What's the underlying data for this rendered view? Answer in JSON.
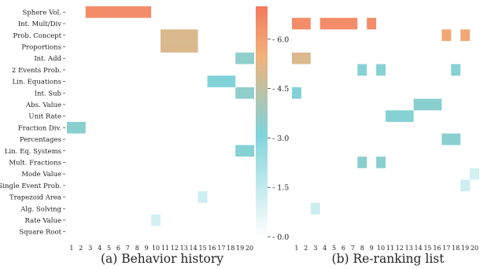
{
  "chart_data": [
    {
      "type": "heatmap",
      "title": "(a) Behavior history",
      "ylabels": [
        "Sphere Vol.",
        "Int. Mult/Div",
        "Prob. Concept",
        "Proportions",
        "Int. Add",
        "2 Events Prob.",
        "Lin. Equations",
        "Int. Sub",
        "Abs. Value",
        "Unit Rate",
        "Fraction Div.",
        "Percentages",
        "Lin. Eq. Systems",
        "Mult. Fractions",
        "Mode Value",
        "Single Event Prob.",
        "Trapezoid Area",
        "Alg. Solving",
        "Rate Value",
        "Square Root"
      ],
      "xlabels": [
        "1",
        "2",
        "3",
        "4",
        "5",
        "6",
        "7",
        "8",
        "9",
        "10",
        "11",
        "12",
        "13",
        "14",
        "15",
        "16",
        "17",
        "18",
        "19",
        "20"
      ],
      "cells": [
        {
          "row": "Sphere Vol.",
          "x": [
            3,
            9
          ],
          "value": 6.5
        },
        {
          "row": "Proportions",
          "x": [
            11,
            14
          ],
          "value": 5.0
        },
        {
          "row": "Prob. Concept",
          "x": [
            11,
            14
          ],
          "value": 5.0
        },
        {
          "row": "Int. Add",
          "x": [
            19,
            20
          ],
          "value": 3.5
        },
        {
          "row": "Lin. Equations",
          "x": [
            16,
            18
          ],
          "value": 3.2
        },
        {
          "row": "Int. Sub",
          "x": [
            19,
            20
          ],
          "value": 3.5
        },
        {
          "row": "Fraction Div.",
          "x": [
            1,
            2
          ],
          "value": 3.4
        },
        {
          "row": "Lin. Eq. Systems",
          "x": [
            19,
            20
          ],
          "value": 3.3
        },
        {
          "row": "Trapezoid Area",
          "x": [
            15,
            15
          ],
          "value": 1.2
        },
        {
          "row": "Rate Value",
          "x": [
            10,
            10
          ],
          "value": 1.1
        }
      ]
    },
    {
      "type": "heatmap",
      "title": "(b) Re-ranking list",
      "xlabels": [
        "1",
        "2",
        "3",
        "4",
        "5",
        "6",
        "7",
        "8",
        "9",
        "10",
        "11",
        "12",
        "13",
        "14",
        "15",
        "16",
        "17",
        "18",
        "19",
        "20"
      ],
      "cells": [
        {
          "row": "Int. Mult/Div",
          "x": [
            1,
            2
          ],
          "value": 6.5
        },
        {
          "row": "Int. Mult/Div",
          "x": [
            4,
            7
          ],
          "value": 6.5
        },
        {
          "row": "Int. Mult/Div",
          "x": [
            9,
            9
          ],
          "value": 6.5
        },
        {
          "row": "Prob. Concept",
          "x": [
            17,
            17
          ],
          "value": 5.8
        },
        {
          "row": "Prob. Concept",
          "x": [
            19,
            19
          ],
          "value": 5.8
        },
        {
          "row": "Int. Add",
          "x": [
            1,
            2
          ],
          "value": 5.0
        },
        {
          "row": "2 Events Prob.",
          "x": [
            8,
            8
          ],
          "value": 3.3
        },
        {
          "row": "2 Events Prob.",
          "x": [
            10,
            10
          ],
          "value": 3.3
        },
        {
          "row": "2 Events Prob.",
          "x": [
            18,
            18
          ],
          "value": 3.3
        },
        {
          "row": "Int. Sub",
          "x": [
            1,
            1
          ],
          "value": 3.2
        },
        {
          "row": "Abs. Value",
          "x": [
            14,
            16
          ],
          "value": 3.4
        },
        {
          "row": "Unit Rate",
          "x": [
            11,
            13
          ],
          "value": 3.3
        },
        {
          "row": "Percentages",
          "x": [
            17,
            18
          ],
          "value": 3.4
        },
        {
          "row": "Mult. Fractions",
          "x": [
            8,
            8
          ],
          "value": 3.4
        },
        {
          "row": "Mult. Fractions",
          "x": [
            10,
            10
          ],
          "value": 3.4
        },
        {
          "row": "Mode Value",
          "x": [
            20,
            20
          ],
          "value": 1.1
        },
        {
          "row": "Single Event Prob.",
          "x": [
            19,
            19
          ],
          "value": 1.2
        },
        {
          "row": "Alg. Solving",
          "x": [
            3,
            3
          ],
          "value": 1.3
        }
      ]
    }
  ],
  "colorbar": {
    "ticks": [
      "0.0",
      "1.5",
      "3.0",
      "4.5",
      "6.0"
    ],
    "tick_values": [
      0,
      1.5,
      3.0,
      4.5,
      6.0
    ],
    "range": [
      0,
      7
    ],
    "colors": [
      "#ffffff",
      "#7ed3da",
      "#f0b27a",
      "#f47a5f"
    ]
  }
}
